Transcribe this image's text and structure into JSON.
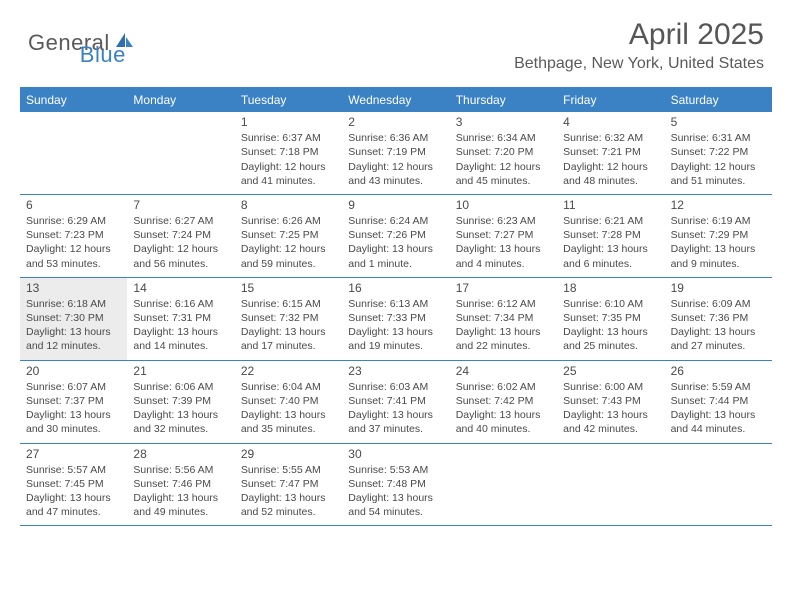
{
  "brand": {
    "part1": "General",
    "part2": "Blue"
  },
  "title": "April 2025",
  "location": "Bethpage, New York, United States",
  "colors": {
    "accent": "#3a82c4",
    "shade": "#ececec",
    "text": "#4a4a4a"
  },
  "dow": [
    "Sunday",
    "Monday",
    "Tuesday",
    "Wednesday",
    "Thursday",
    "Friday",
    "Saturday"
  ],
  "shaded_days": [
    13
  ],
  "weeks": [
    [
      null,
      null,
      {
        "n": 1,
        "sr": "6:37 AM",
        "ss": "7:18 PM",
        "dl": "12 hours and 41 minutes."
      },
      {
        "n": 2,
        "sr": "6:36 AM",
        "ss": "7:19 PM",
        "dl": "12 hours and 43 minutes."
      },
      {
        "n": 3,
        "sr": "6:34 AM",
        "ss": "7:20 PM",
        "dl": "12 hours and 45 minutes."
      },
      {
        "n": 4,
        "sr": "6:32 AM",
        "ss": "7:21 PM",
        "dl": "12 hours and 48 minutes."
      },
      {
        "n": 5,
        "sr": "6:31 AM",
        "ss": "7:22 PM",
        "dl": "12 hours and 51 minutes."
      }
    ],
    [
      {
        "n": 6,
        "sr": "6:29 AM",
        "ss": "7:23 PM",
        "dl": "12 hours and 53 minutes."
      },
      {
        "n": 7,
        "sr": "6:27 AM",
        "ss": "7:24 PM",
        "dl": "12 hours and 56 minutes."
      },
      {
        "n": 8,
        "sr": "6:26 AM",
        "ss": "7:25 PM",
        "dl": "12 hours and 59 minutes."
      },
      {
        "n": 9,
        "sr": "6:24 AM",
        "ss": "7:26 PM",
        "dl": "13 hours and 1 minute."
      },
      {
        "n": 10,
        "sr": "6:23 AM",
        "ss": "7:27 PM",
        "dl": "13 hours and 4 minutes."
      },
      {
        "n": 11,
        "sr": "6:21 AM",
        "ss": "7:28 PM",
        "dl": "13 hours and 6 minutes."
      },
      {
        "n": 12,
        "sr": "6:19 AM",
        "ss": "7:29 PM",
        "dl": "13 hours and 9 minutes."
      }
    ],
    [
      {
        "n": 13,
        "sr": "6:18 AM",
        "ss": "7:30 PM",
        "dl": "13 hours and 12 minutes."
      },
      {
        "n": 14,
        "sr": "6:16 AM",
        "ss": "7:31 PM",
        "dl": "13 hours and 14 minutes."
      },
      {
        "n": 15,
        "sr": "6:15 AM",
        "ss": "7:32 PM",
        "dl": "13 hours and 17 minutes."
      },
      {
        "n": 16,
        "sr": "6:13 AM",
        "ss": "7:33 PM",
        "dl": "13 hours and 19 minutes."
      },
      {
        "n": 17,
        "sr": "6:12 AM",
        "ss": "7:34 PM",
        "dl": "13 hours and 22 minutes."
      },
      {
        "n": 18,
        "sr": "6:10 AM",
        "ss": "7:35 PM",
        "dl": "13 hours and 25 minutes."
      },
      {
        "n": 19,
        "sr": "6:09 AM",
        "ss": "7:36 PM",
        "dl": "13 hours and 27 minutes."
      }
    ],
    [
      {
        "n": 20,
        "sr": "6:07 AM",
        "ss": "7:37 PM",
        "dl": "13 hours and 30 minutes."
      },
      {
        "n": 21,
        "sr": "6:06 AM",
        "ss": "7:39 PM",
        "dl": "13 hours and 32 minutes."
      },
      {
        "n": 22,
        "sr": "6:04 AM",
        "ss": "7:40 PM",
        "dl": "13 hours and 35 minutes."
      },
      {
        "n": 23,
        "sr": "6:03 AM",
        "ss": "7:41 PM",
        "dl": "13 hours and 37 minutes."
      },
      {
        "n": 24,
        "sr": "6:02 AM",
        "ss": "7:42 PM",
        "dl": "13 hours and 40 minutes."
      },
      {
        "n": 25,
        "sr": "6:00 AM",
        "ss": "7:43 PM",
        "dl": "13 hours and 42 minutes."
      },
      {
        "n": 26,
        "sr": "5:59 AM",
        "ss": "7:44 PM",
        "dl": "13 hours and 44 minutes."
      }
    ],
    [
      {
        "n": 27,
        "sr": "5:57 AM",
        "ss": "7:45 PM",
        "dl": "13 hours and 47 minutes."
      },
      {
        "n": 28,
        "sr": "5:56 AM",
        "ss": "7:46 PM",
        "dl": "13 hours and 49 minutes."
      },
      {
        "n": 29,
        "sr": "5:55 AM",
        "ss": "7:47 PM",
        "dl": "13 hours and 52 minutes."
      },
      {
        "n": 30,
        "sr": "5:53 AM",
        "ss": "7:48 PM",
        "dl": "13 hours and 54 minutes."
      },
      null,
      null,
      null
    ]
  ]
}
